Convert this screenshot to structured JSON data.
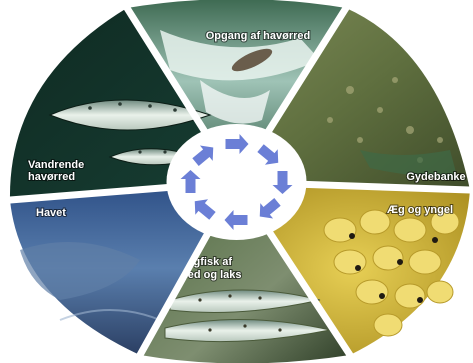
{
  "diagram": {
    "type": "life-cycle-wheel",
    "cycle_direction": "clockwise",
    "segments": [
      {
        "id": "opgang",
        "label": [
          "Opgang af havørred"
        ],
        "scene": "salmon leaping up a waterfall"
      },
      {
        "id": "gydebanke",
        "label": [
          "Gydebanke"
        ],
        "scene": "gravel spawning bed in shallow stream"
      },
      {
        "id": "aeg",
        "label": [
          "Æg og yngel"
        ],
        "scene": "yellow eggs and hatched fry"
      },
      {
        "id": "ungfisk",
        "label": [
          "Ungfisk af",
          "ørred og laks"
        ],
        "scene": "juvenile trout held in hand"
      },
      {
        "id": "havet",
        "label": [
          "Havet"
        ],
        "scene": "sea and coastline seen from above"
      },
      {
        "id": "vandrende",
        "label": [
          "Vandrende",
          "havørred"
        ],
        "scene": "two silver sea trout"
      }
    ],
    "center_arrows": 8,
    "colors": {
      "arrow": "#6b7fd6",
      "hub": "#ffffff",
      "divider": "#ffffff"
    }
  }
}
